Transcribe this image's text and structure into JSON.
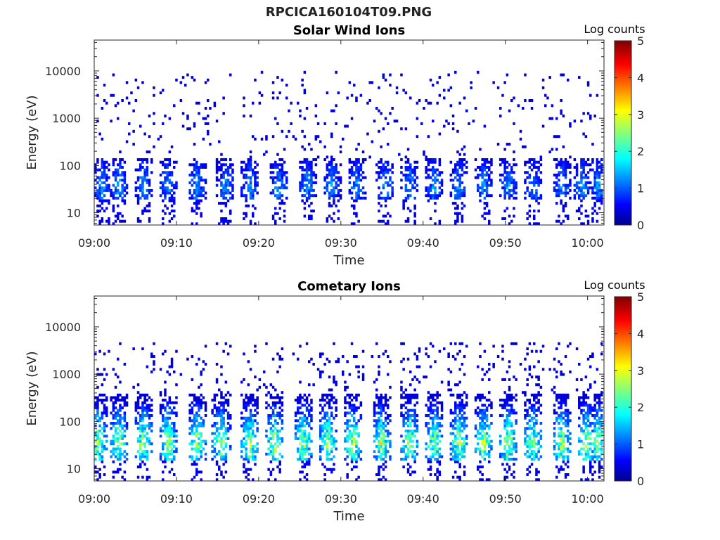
{
  "figure": {
    "title": "RPCICA160104T09.PNG"
  },
  "chart_data": [
    {
      "type": "heatmap",
      "title": "Solar Wind Ions",
      "xlabel": "Time",
      "ylabel": "Energy (eV)",
      "x_ticks": [
        "09:00",
        "09:10",
        "09:20",
        "09:30",
        "09:40",
        "09:50",
        "10:00"
      ],
      "x_range": [
        "09:00",
        "10:02"
      ],
      "y_scale": "log",
      "y_ticks": [
        10,
        100,
        1000,
        10000
      ],
      "y_tick_labels": [
        "10",
        "100",
        "1000",
        "10000"
      ],
      "y_range": [
        5.5,
        45000
      ],
      "colorbar": {
        "label": "Log counts",
        "range": [
          0,
          5
        ],
        "ticks": [
          "0",
          "1",
          "2",
          "3",
          "4",
          "5"
        ],
        "colormap": "jet"
      },
      "bursts_minutes": [
        1,
        3,
        6,
        9,
        12.5,
        16,
        19,
        22.5,
        26,
        29,
        32,
        35.5,
        38.5,
        41.5,
        44.5,
        47.5,
        50.5,
        53.5,
        57,
        59.5,
        61.5
      ],
      "burst_energy_range_eV": [
        20,
        150
      ],
      "background_energy_range_eV": [
        150,
        10000
      ],
      "peak_log_counts": 1.6
    },
    {
      "type": "heatmap",
      "title": "Cometary Ions",
      "xlabel": "Time",
      "ylabel": "Energy (eV)",
      "x_ticks": [
        "09:00",
        "09:10",
        "09:20",
        "09:30",
        "09:40",
        "09:50",
        "10:00"
      ],
      "x_range": [
        "09:00",
        "10:02"
      ],
      "y_scale": "log",
      "y_ticks": [
        10,
        100,
        1000,
        10000
      ],
      "y_tick_labels": [
        "10",
        "100",
        "1000",
        "10000"
      ],
      "y_range": [
        5.5,
        45000
      ],
      "colorbar": {
        "label": "Log counts",
        "range": [
          0,
          5
        ],
        "ticks": [
          "0",
          "1",
          "2",
          "3",
          "4",
          "5"
        ],
        "colormap": "jet"
      },
      "bursts_minutes": [
        0.5,
        3,
        6,
        9,
        12.5,
        15.5,
        19,
        22,
        25.5,
        28.5,
        31.5,
        35,
        38.5,
        41.5,
        44.5,
        47.5,
        50.5,
        53.5,
        57,
        60,
        61.5
      ],
      "burst_energy_range_eV": [
        15,
        400
      ],
      "background_energy_range_eV": [
        400,
        5000
      ],
      "peak_log_counts": 3.2
    }
  ]
}
